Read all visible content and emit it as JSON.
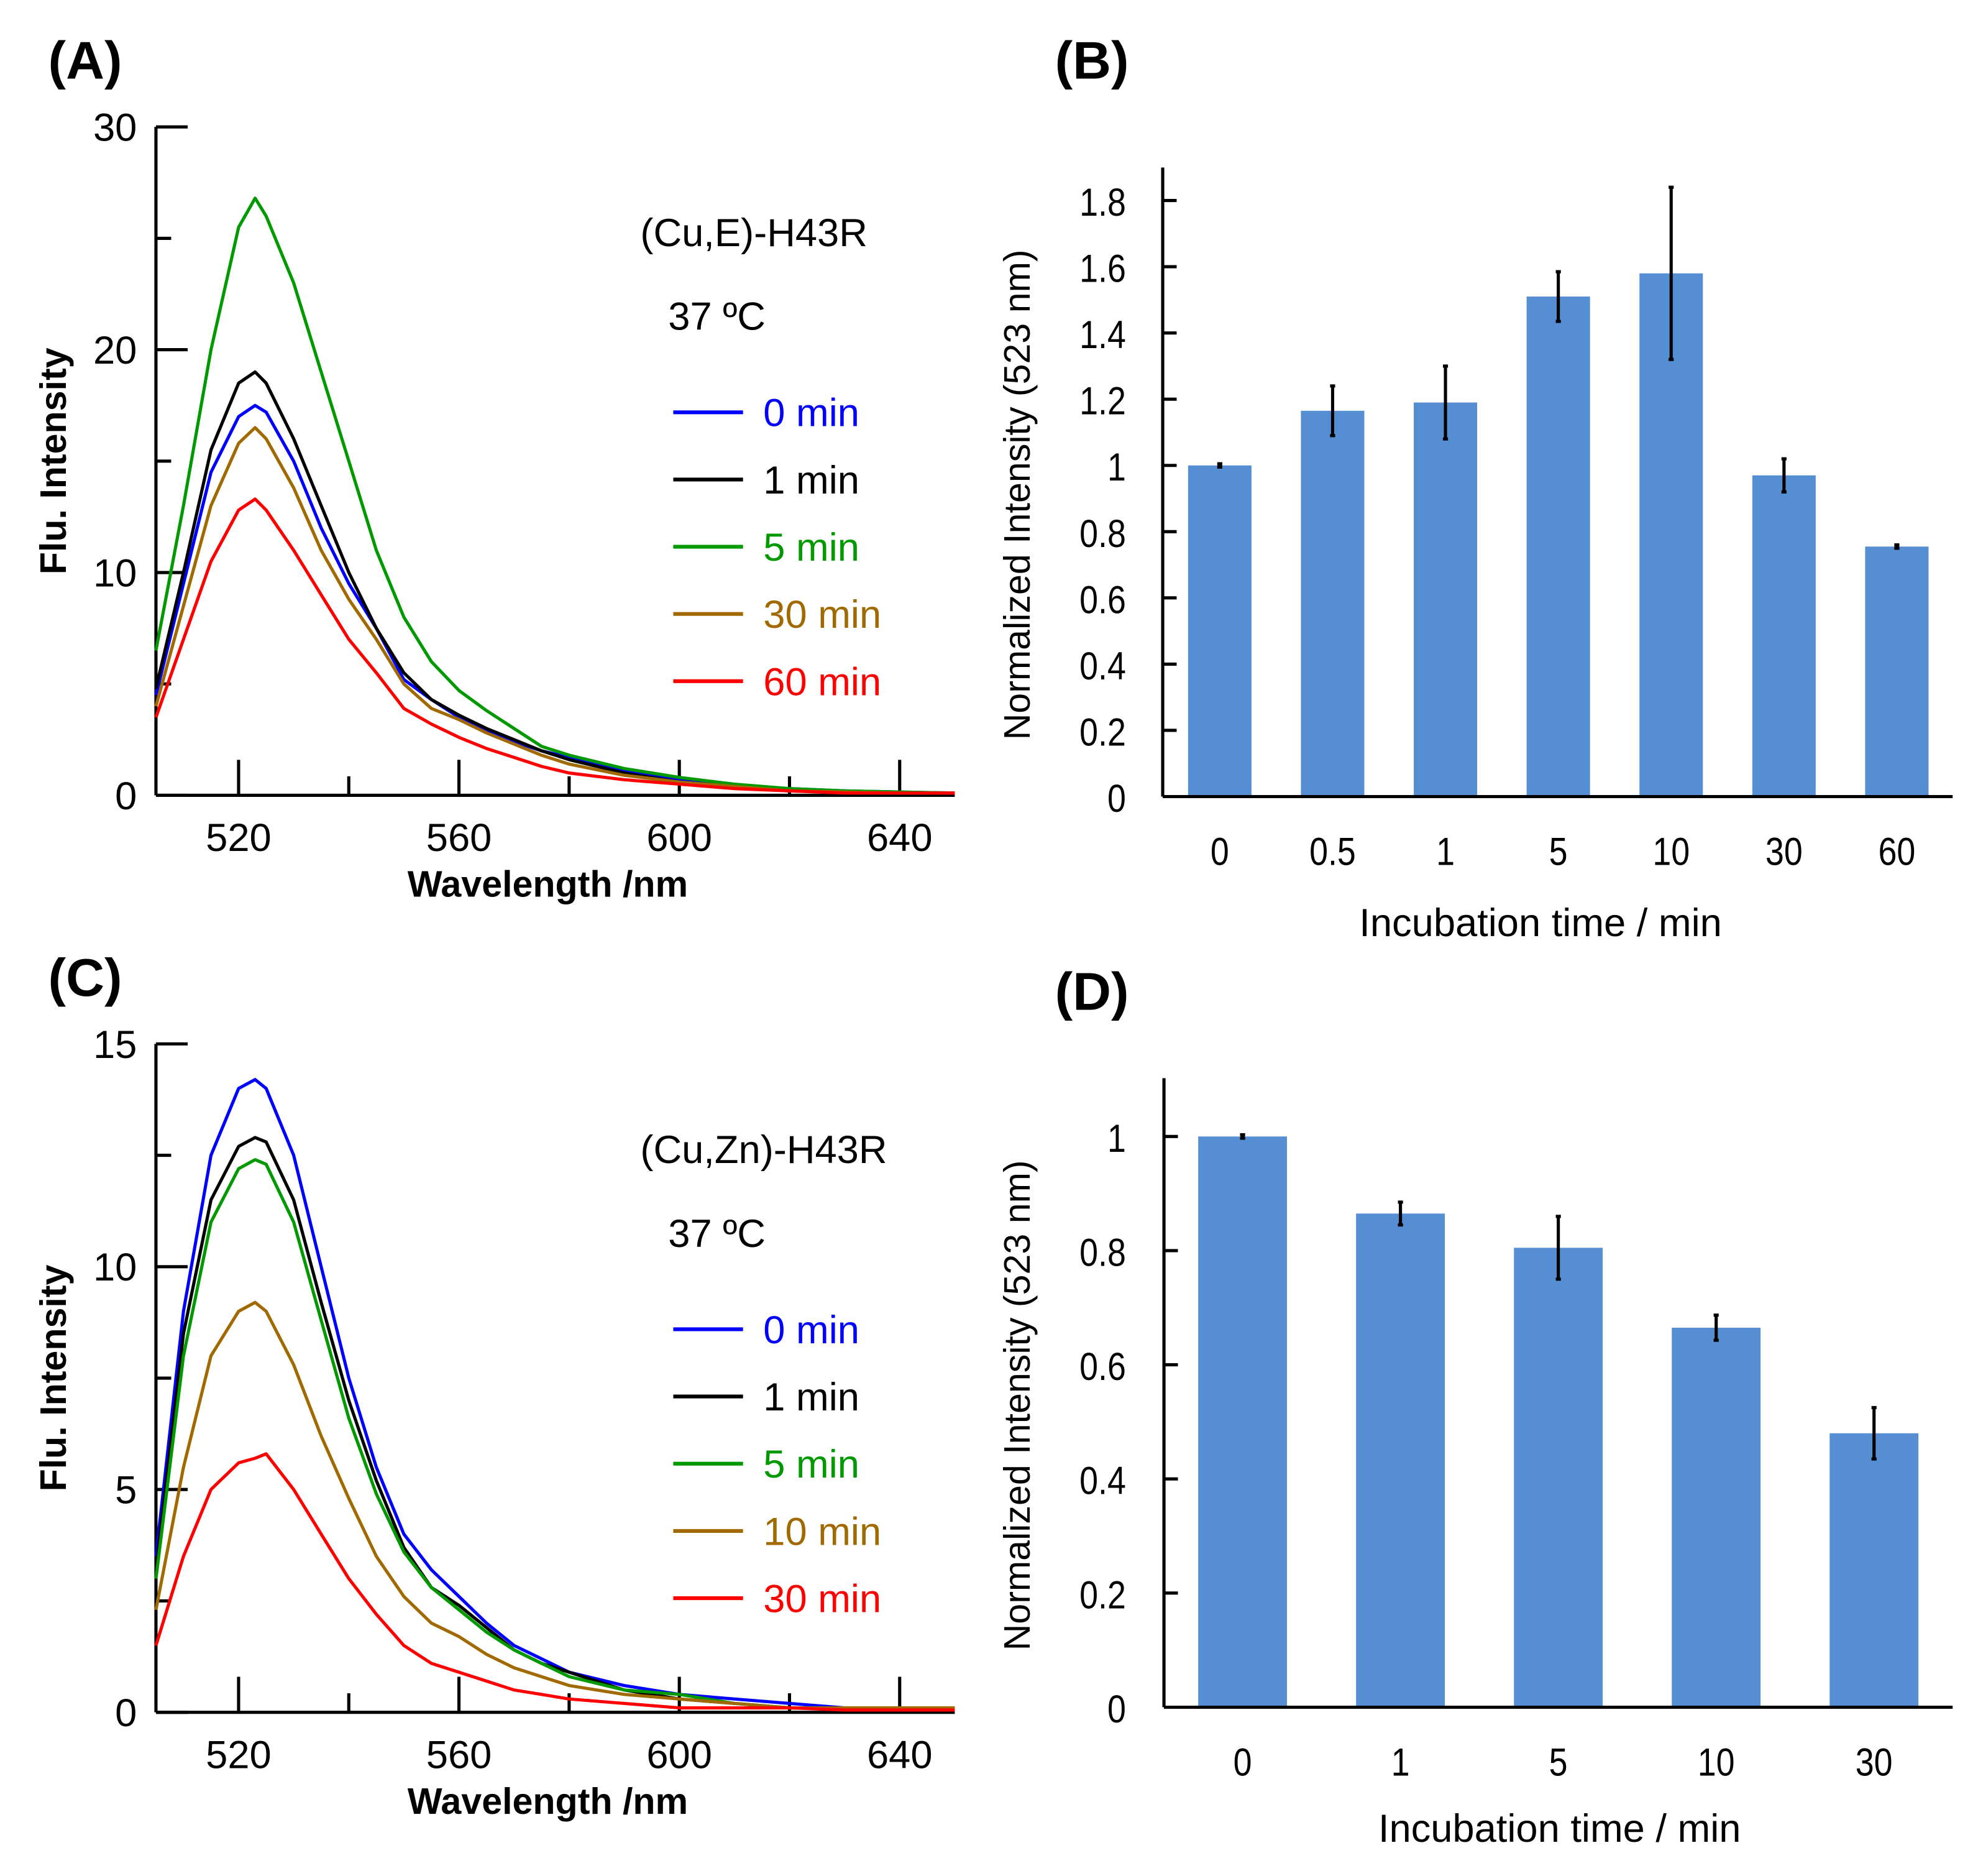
{
  "chart_data": [
    {
      "panel": "(A)",
      "type": "line",
      "xlabel": "Wavelength /nm",
      "ylabel": "Flu. Intensity",
      "xlim": [
        505,
        650
      ],
      "ylim": [
        0,
        30
      ],
      "xticks": [
        520,
        560,
        600,
        640
      ],
      "yticks": [
        0,
        10,
        20,
        30
      ],
      "annotation": [
        "(Cu,E)-H43R",
        "37 ºC"
      ],
      "legend_placement": "right",
      "x": [
        505,
        510,
        515,
        520,
        523,
        525,
        530,
        535,
        540,
        545,
        550,
        555,
        560,
        565,
        570,
        575,
        580,
        590,
        600,
        610,
        620,
        630,
        640,
        650
      ],
      "series": [
        {
          "name": "0 min",
          "color": "#0000ff",
          "values": [
            4.5,
            9.5,
            14.5,
            17,
            17.5,
            17.2,
            15,
            12,
            9.5,
            7.5,
            5.2,
            4.3,
            3.5,
            2.9,
            2.4,
            2,
            1.7,
            1.1,
            0.7,
            0.4,
            0.3,
            0.2,
            0.15,
            0.1
          ]
        },
        {
          "name": "1 min",
          "color": "#000000",
          "values": [
            4.8,
            10,
            15.5,
            18.5,
            19,
            18.5,
            16,
            13,
            10,
            7.5,
            5.5,
            4.3,
            3.6,
            3,
            2.5,
            2,
            1.6,
            1,
            0.6,
            0.4,
            0.2,
            0.15,
            0.1,
            0.1
          ]
        },
        {
          "name": "5 min",
          "color": "#009900",
          "values": [
            6.5,
            13,
            20,
            25.5,
            26.8,
            26,
            23,
            19,
            15,
            11,
            8,
            6,
            4.7,
            3.8,
            3,
            2.2,
            1.8,
            1.2,
            0.8,
            0.5,
            0.3,
            0.2,
            0.15,
            0.1
          ]
        },
        {
          "name": "30 min",
          "color": "#a06a00",
          "values": [
            4,
            8.5,
            13,
            15.8,
            16.5,
            16,
            13.8,
            11,
            8.8,
            7,
            5,
            3.9,
            3.4,
            2.8,
            2.3,
            1.8,
            1.4,
            0.9,
            0.6,
            0.4,
            0.2,
            0.15,
            0.1,
            0.1
          ]
        },
        {
          "name": "60 min",
          "color": "#ff0000",
          "values": [
            3.5,
            7,
            10.5,
            12.8,
            13.3,
            12.8,
            11,
            9,
            7,
            5.5,
            3.9,
            3.2,
            2.6,
            2.1,
            1.7,
            1.3,
            1,
            0.7,
            0.5,
            0.3,
            0.2,
            0.1,
            0.1,
            0.1
          ]
        }
      ]
    },
    {
      "panel": "(B)",
      "type": "bar",
      "xlabel": "Incubation time / min",
      "ylabel": "Normalized Intensity (523 nm)",
      "ylim": [
        0,
        1.9
      ],
      "yticks": [
        "0",
        "0.2",
        "0.4",
        "0.6",
        "0.8",
        "1",
        "1.2",
        "1.4",
        "1.6",
        "1.8"
      ],
      "bar_color": "#568ed4",
      "categories": [
        "0",
        "0.5",
        "1",
        "5",
        "10",
        "30",
        "60"
      ],
      "values": [
        1.0,
        1.165,
        1.19,
        1.51,
        1.58,
        0.97,
        0.755
      ],
      "errors": [
        0.005,
        0.075,
        0.11,
        0.075,
        0.26,
        0.05,
        0.005
      ]
    },
    {
      "panel": "(C)",
      "type": "line",
      "xlabel": "Wavelength /nm",
      "ylabel": "Flu. Intensity",
      "xlim": [
        505,
        650
      ],
      "ylim": [
        0,
        15
      ],
      "xticks": [
        520,
        560,
        600,
        640
      ],
      "yticks": [
        0,
        5,
        10,
        15
      ],
      "annotation": [
        "(Cu,Zn)-H43R",
        "37 ºC"
      ],
      "legend_placement": "right",
      "x": [
        505,
        510,
        515,
        520,
        523,
        525,
        530,
        535,
        540,
        545,
        550,
        555,
        560,
        565,
        570,
        575,
        580,
        590,
        600,
        610,
        620,
        630,
        640,
        650
      ],
      "series": [
        {
          "name": "0 min",
          "color": "#0000ff",
          "values": [
            3.5,
            9,
            12.5,
            14,
            14.2,
            14,
            12.5,
            10,
            7.5,
            5.5,
            4,
            3.2,
            2.6,
            2,
            1.5,
            1.2,
            0.9,
            0.6,
            0.4,
            0.3,
            0.2,
            0.1,
            0.1,
            0.1
          ]
        },
        {
          "name": "1 min",
          "color": "#000000",
          "values": [
            3.2,
            8.5,
            11.5,
            12.7,
            12.9,
            12.8,
            11.5,
            9.2,
            7,
            5.2,
            3.7,
            2.8,
            2.4,
            1.9,
            1.4,
            1.1,
            0.9,
            0.5,
            0.3,
            0.2,
            0.1,
            0.1,
            0.1,
            0.1
          ]
        },
        {
          "name": "5 min",
          "color": "#009900",
          "values": [
            3,
            8,
            11,
            12.2,
            12.4,
            12.3,
            11,
            8.8,
            6.6,
            4.9,
            3.6,
            2.8,
            2.3,
            1.8,
            1.4,
            1.1,
            0.8,
            0.5,
            0.4,
            0.2,
            0.1,
            0.1,
            0.1,
            0.1
          ]
        },
        {
          "name": "10 min",
          "color": "#a06a00",
          "values": [
            2.3,
            5.5,
            8,
            9,
            9.2,
            9,
            7.8,
            6.2,
            4.8,
            3.5,
            2.6,
            2,
            1.7,
            1.3,
            1,
            0.8,
            0.6,
            0.4,
            0.3,
            0.2,
            0.1,
            0.1,
            0.1,
            0.1
          ]
        },
        {
          "name": "30 min",
          "color": "#ff0000",
          "values": [
            1.5,
            3.5,
            5,
            5.6,
            5.7,
            5.8,
            5,
            4,
            3,
            2.2,
            1.5,
            1.1,
            0.9,
            0.7,
            0.5,
            0.4,
            0.3,
            0.2,
            0.1,
            0.1,
            0.1,
            0.05,
            0.05,
            0.05
          ]
        }
      ]
    },
    {
      "panel": "(D)",
      "type": "bar",
      "xlabel": "Incubation time / min",
      "ylabel": "Normalized Intensity (523 nm)",
      "ylim": [
        0,
        1.1
      ],
      "yticks": [
        "0",
        "0.2",
        "0.4",
        "0.6",
        "0.8",
        "1"
      ],
      "bar_color": "#568ed4",
      "categories": [
        "0",
        "1",
        "5",
        "10",
        "30"
      ],
      "values": [
        1.0,
        0.865,
        0.805,
        0.665,
        0.48
      ],
      "errors": [
        0.003,
        0.02,
        0.055,
        0.022,
        0.045
      ]
    }
  ]
}
